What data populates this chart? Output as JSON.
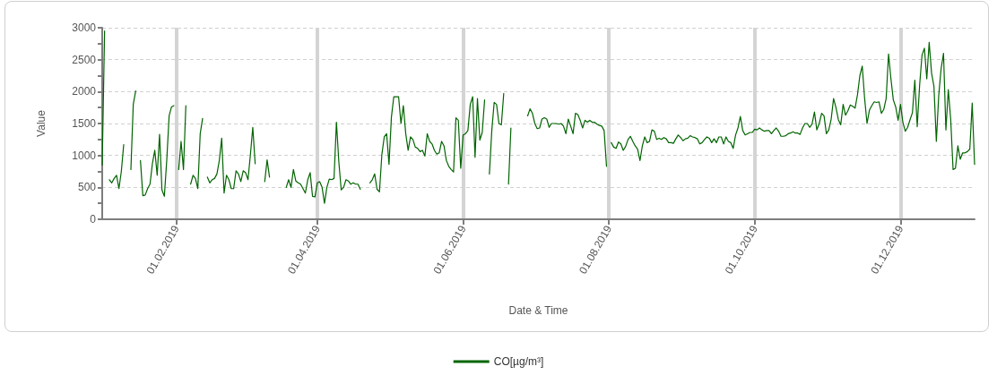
{
  "chart_data": {
    "type": "line",
    "xlabel": "Date & Time",
    "ylabel": "Value",
    "x": [
      "2019-01-01",
      "2019-01-02",
      "2019-01-03",
      "2019-01-04",
      "2019-01-05",
      "2019-01-06",
      "2019-01-07",
      "2019-01-08",
      "2019-01-09",
      "2019-01-10",
      "2019-01-11",
      "2019-01-13",
      "2019-01-14",
      "2019-01-15",
      "2019-01-16",
      "2019-01-17",
      "2019-01-18",
      "2019-01-19",
      "2019-01-20",
      "2019-01-21",
      "2019-01-22",
      "2019-01-23",
      "2019-01-24",
      "2019-01-25",
      "2019-01-26",
      "2019-01-27",
      "2019-01-28",
      "2019-01-29",
      "2019-01-30",
      "2019-01-31",
      "2019-02-01",
      "2019-02-02",
      "2019-02-03",
      "2019-02-04",
      "2019-02-05",
      "2019-02-06",
      "2019-02-07",
      "2019-02-08",
      "2019-02-09",
      "2019-02-10",
      "2019-02-11",
      "2019-02-12",
      "2019-02-13",
      "2019-02-14",
      "2019-02-15",
      "2019-02-16",
      "2019-02-17",
      "2019-02-18",
      "2019-02-19",
      "2019-02-20",
      "2019-02-21",
      "2019-02-22",
      "2019-02-23",
      "2019-02-24",
      "2019-02-25",
      "2019-02-26",
      "2019-02-27",
      "2019-02-28",
      "2019-03-01",
      "2019-03-02",
      "2019-03-03",
      "2019-03-04",
      "2019-03-05",
      "2019-03-06",
      "2019-03-07",
      "2019-03-10",
      "2019-03-11",
      "2019-03-12",
      "2019-03-13",
      "2019-03-19",
      "2019-03-20",
      "2019-03-21",
      "2019-03-22",
      "2019-03-23",
      "2019-03-24",
      "2019-03-25",
      "2019-03-26",
      "2019-03-27",
      "2019-03-28",
      "2019-03-29",
      "2019-03-30",
      "2019-03-31",
      "2019-04-01",
      "2019-04-02",
      "2019-04-03",
      "2019-04-04",
      "2019-04-05",
      "2019-04-06",
      "2019-04-07",
      "2019-04-08",
      "2019-04-09",
      "2019-04-10",
      "2019-04-11",
      "2019-04-12",
      "2019-04-13",
      "2019-04-14",
      "2019-04-15",
      "2019-04-16",
      "2019-04-17",
      "2019-04-18",
      "2019-04-19",
      "2019-04-20",
      "2019-04-23",
      "2019-04-24",
      "2019-04-25",
      "2019-04-26",
      "2019-04-27",
      "2019-04-28",
      "2019-04-29",
      "2019-04-30",
      "2019-05-01",
      "2019-05-02",
      "2019-05-03",
      "2019-05-04",
      "2019-05-05",
      "2019-05-06",
      "2019-05-07",
      "2019-05-08",
      "2019-05-09",
      "2019-05-10",
      "2019-05-11",
      "2019-05-12",
      "2019-05-13",
      "2019-05-14",
      "2019-05-15",
      "2019-05-16",
      "2019-05-17",
      "2019-05-18",
      "2019-05-19",
      "2019-05-20",
      "2019-05-21",
      "2019-05-22",
      "2019-05-23",
      "2019-05-24",
      "2019-05-25",
      "2019-05-26",
      "2019-05-27",
      "2019-05-28",
      "2019-05-29",
      "2019-05-30",
      "2019-05-31",
      "2019-06-01",
      "2019-06-02",
      "2019-06-03",
      "2019-06-04",
      "2019-06-05",
      "2019-06-06",
      "2019-06-07",
      "2019-06-08",
      "2019-06-09",
      "2019-06-10",
      "2019-06-11",
      "2019-06-12",
      "2019-06-13",
      "2019-06-14",
      "2019-06-15",
      "2019-06-16",
      "2019-06-17",
      "2019-06-18",
      "2019-06-19",
      "2019-06-20",
      "2019-06-21",
      "2019-06-22",
      "2019-06-28",
      "2019-06-29",
      "2019-06-30",
      "2019-07-01",
      "2019-07-02",
      "2019-07-03",
      "2019-07-04",
      "2019-07-05",
      "2019-07-06",
      "2019-07-07",
      "2019-07-08",
      "2019-07-09",
      "2019-07-10",
      "2019-07-11",
      "2019-07-12",
      "2019-07-13",
      "2019-07-14",
      "2019-07-15",
      "2019-07-16",
      "2019-07-17",
      "2019-07-18",
      "2019-07-19",
      "2019-07-20",
      "2019-07-21",
      "2019-07-22",
      "2019-07-23",
      "2019-07-24",
      "2019-07-25",
      "2019-07-26",
      "2019-07-27",
      "2019-07-28",
      "2019-07-29",
      "2019-07-30",
      "2019-07-31",
      "2019-08-01",
      "2019-08-02",
      "2019-08-03",
      "2019-08-04",
      "2019-08-05",
      "2019-08-06",
      "2019-08-07",
      "2019-08-08",
      "2019-08-09",
      "2019-08-10",
      "2019-08-11",
      "2019-08-12",
      "2019-08-13",
      "2019-08-14",
      "2019-08-15",
      "2019-08-16",
      "2019-08-17",
      "2019-08-18",
      "2019-08-19",
      "2019-08-20",
      "2019-08-21",
      "2019-08-22",
      "2019-08-23",
      "2019-08-24",
      "2019-08-25",
      "2019-08-26",
      "2019-08-27",
      "2019-08-28",
      "2019-08-29",
      "2019-08-30",
      "2019-08-31",
      "2019-09-01",
      "2019-09-02",
      "2019-09-03",
      "2019-09-04",
      "2019-09-05",
      "2019-09-06",
      "2019-09-07",
      "2019-09-08",
      "2019-09-09",
      "2019-09-10",
      "2019-09-11",
      "2019-09-12",
      "2019-09-13",
      "2019-09-14",
      "2019-09-15",
      "2019-09-16",
      "2019-09-17",
      "2019-09-18",
      "2019-09-19",
      "2019-09-20",
      "2019-09-21",
      "2019-09-22",
      "2019-09-23",
      "2019-09-24",
      "2019-09-25",
      "2019-09-26",
      "2019-09-27",
      "2019-09-28",
      "2019-09-29",
      "2019-09-30",
      "2019-10-01",
      "2019-10-02",
      "2019-10-03",
      "2019-10-04",
      "2019-10-05",
      "2019-10-06",
      "2019-10-07",
      "2019-10-08",
      "2019-10-09",
      "2019-10-10",
      "2019-10-11",
      "2019-10-12",
      "2019-10-13",
      "2019-10-14",
      "2019-10-15",
      "2019-10-16",
      "2019-10-17",
      "2019-10-18",
      "2019-10-19",
      "2019-10-20",
      "2019-10-21",
      "2019-10-22",
      "2019-10-23",
      "2019-10-24",
      "2019-10-25",
      "2019-10-26",
      "2019-10-27",
      "2019-10-28",
      "2019-10-29",
      "2019-10-30",
      "2019-10-31",
      "2019-11-01",
      "2019-11-02",
      "2019-11-03",
      "2019-11-04",
      "2019-11-05",
      "2019-11-06",
      "2019-11-07",
      "2019-11-08",
      "2019-11-09",
      "2019-11-10",
      "2019-11-11",
      "2019-11-12",
      "2019-11-13",
      "2019-11-14",
      "2019-11-15",
      "2019-11-16",
      "2019-11-17",
      "2019-11-18",
      "2019-11-19",
      "2019-11-20",
      "2019-11-21",
      "2019-11-22",
      "2019-11-23",
      "2019-11-24",
      "2019-11-25",
      "2019-11-26",
      "2019-11-27",
      "2019-11-28",
      "2019-11-29",
      "2019-11-30",
      "2019-12-01",
      "2019-12-02",
      "2019-12-03",
      "2019-12-04",
      "2019-12-05",
      "2019-12-06",
      "2019-12-07",
      "2019-12-08",
      "2019-12-09",
      "2019-12-10",
      "2019-12-11",
      "2019-12-12",
      "2019-12-13",
      "2019-12-14",
      "2019-12-15",
      "2019-12-16",
      "2019-12-17",
      "2019-12-18",
      "2019-12-19",
      "2019-12-20",
      "2019-12-21",
      "2019-12-22",
      "2019-12-23",
      "2019-12-24",
      "2019-12-25",
      "2019-12-26",
      "2019-12-27",
      "2019-12-28",
      "2019-12-29",
      "2019-12-30",
      "2019-12-31",
      "2020-01-01"
    ],
    "series": [
      {
        "name": "CO[µg/m³]",
        "color": "#006400",
        "values": [
          850,
          2950,
          null,
          620,
          570,
          640,
          690,
          480,
          750,
          1170,
          null,
          780,
          1800,
          2010,
          null,
          920,
          370,
          380,
          480,
          550,
          870,
          1080,
          690,
          1330,
          460,
          360,
          920,
          1620,
          1760,
          1780,
          null,
          780,
          1220,
          780,
          1780,
          null,
          550,
          690,
          640,
          480,
          1340,
          1580,
          null,
          660,
          570,
          620,
          640,
          710,
          920,
          1270,
          410,
          690,
          620,
          480,
          480,
          760,
          710,
          590,
          760,
          730,
          620,
          1010,
          1440,
          870,
          null,
          590,
          930,
          660,
          null,
          500,
          620,
          500,
          780,
          600,
          570,
          550,
          480,
          410,
          620,
          730,
          360,
          350,
          570,
          590,
          500,
          250,
          500,
          630,
          620,
          640,
          1520,
          900,
          460,
          500,
          620,
          600,
          550,
          570,
          550,
          550,
          470,
          null,
          570,
          620,
          710,
          470,
          430,
          1010,
          1290,
          1340,
          860,
          1600,
          1920,
          1920,
          1920,
          1500,
          1780,
          1340,
          1080,
          1290,
          1250,
          1130,
          1110,
          1060,
          1080,
          990,
          1340,
          1220,
          1180,
          1080,
          1020,
          1040,
          1220,
          1150,
          920,
          830,
          780,
          740,
          1590,
          1550,
          800,
          1320,
          1340,
          1390,
          1800,
          1920,
          970,
          1890,
          1240,
          1360,
          1870,
          null,
          710,
          1390,
          1830,
          1800,
          1500,
          1480,
          1970,
          null,
          550,
          1430,
          null,
          1620,
          1730,
          1660,
          1500,
          1420,
          1430,
          1570,
          1590,
          1570,
          1440,
          1500,
          1500,
          1500,
          1490,
          1500,
          1460,
          1340,
          1570,
          1460,
          1340,
          1660,
          1640,
          1550,
          1430,
          1550,
          1520,
          1550,
          1520,
          1520,
          1490,
          1470,
          1460,
          1390,
          830,
          null,
          1200,
          1130,
          1110,
          1210,
          1180,
          1080,
          1140,
          1250,
          1300,
          1220,
          1150,
          1100,
          920,
          1150,
          1290,
          1200,
          1220,
          1400,
          1380,
          1250,
          1270,
          1250,
          1280,
          1260,
          1200,
          1200,
          1190,
          1260,
          1320,
          1280,
          1230,
          1260,
          1270,
          1310,
          1290,
          1280,
          1260,
          1180,
          1200,
          1250,
          1290,
          1270,
          1200,
          1260,
          1200,
          1290,
          1290,
          1180,
          1290,
          1220,
          1200,
          1110,
          1320,
          1430,
          1610,
          1390,
          1320,
          1340,
          1360,
          1360,
          1410,
          1400,
          1430,
          1400,
          1380,
          1390,
          1390,
          1340,
          1390,
          1430,
          1380,
          1300,
          1300,
          1310,
          1340,
          1350,
          1370,
          1350,
          1350,
          1330,
          1430,
          1500,
          1500,
          1440,
          1490,
          1680,
          1400,
          1500,
          1660,
          1620,
          1340,
          1400,
          1570,
          1890,
          1750,
          1560,
          1480,
          1800,
          1630,
          1700,
          1790,
          1770,
          1740,
          1950,
          2250,
          2400,
          1890,
          1500,
          1710,
          1780,
          1840,
          1830,
          1840,
          1660,
          1720,
          1890,
          2590,
          2200,
          1870,
          1760,
          1550,
          1800,
          1520,
          1380,
          1440,
          1560,
          1670,
          2180,
          1450,
          2100,
          2570,
          2680,
          2200,
          2770,
          2290,
          2080,
          1220,
          1940,
          2360,
          2600,
          1400,
          2030,
          1570,
          780,
          800,
          1150,
          940,
          1040,
          1040,
          1060,
          1100,
          1820,
          860
        ]
      }
    ],
    "xlim": [
      "2019-01-01",
      "2020-01-01"
    ],
    "xticks": [
      {
        "value": "2019-02-01",
        "label": "01.02.2019"
      },
      {
        "value": "2019-04-01",
        "label": "01.04.2019"
      },
      {
        "value": "2019-06-01",
        "label": "01.06.2019"
      },
      {
        "value": "2019-08-01",
        "label": "01.08.2019"
      },
      {
        "value": "2019-10-01",
        "label": "01.10.2019"
      },
      {
        "value": "2019-12-01",
        "label": "01.12.2019"
      }
    ],
    "ylim": [
      0,
      3000
    ],
    "yticks": [
      0,
      {
        "value": 250,
        "label": null
      },
      500,
      {
        "value": 750,
        "label": null
      },
      1000,
      {
        "value": 1250,
        "label": null
      },
      1500,
      {
        "value": 1750,
        "label": null
      },
      2000,
      {
        "value": 2250,
        "label": null
      },
      2500,
      {
        "value": 2750,
        "label": null
      },
      3000
    ],
    "grid": true,
    "legend": "bottom",
    "marker": "none"
  }
}
